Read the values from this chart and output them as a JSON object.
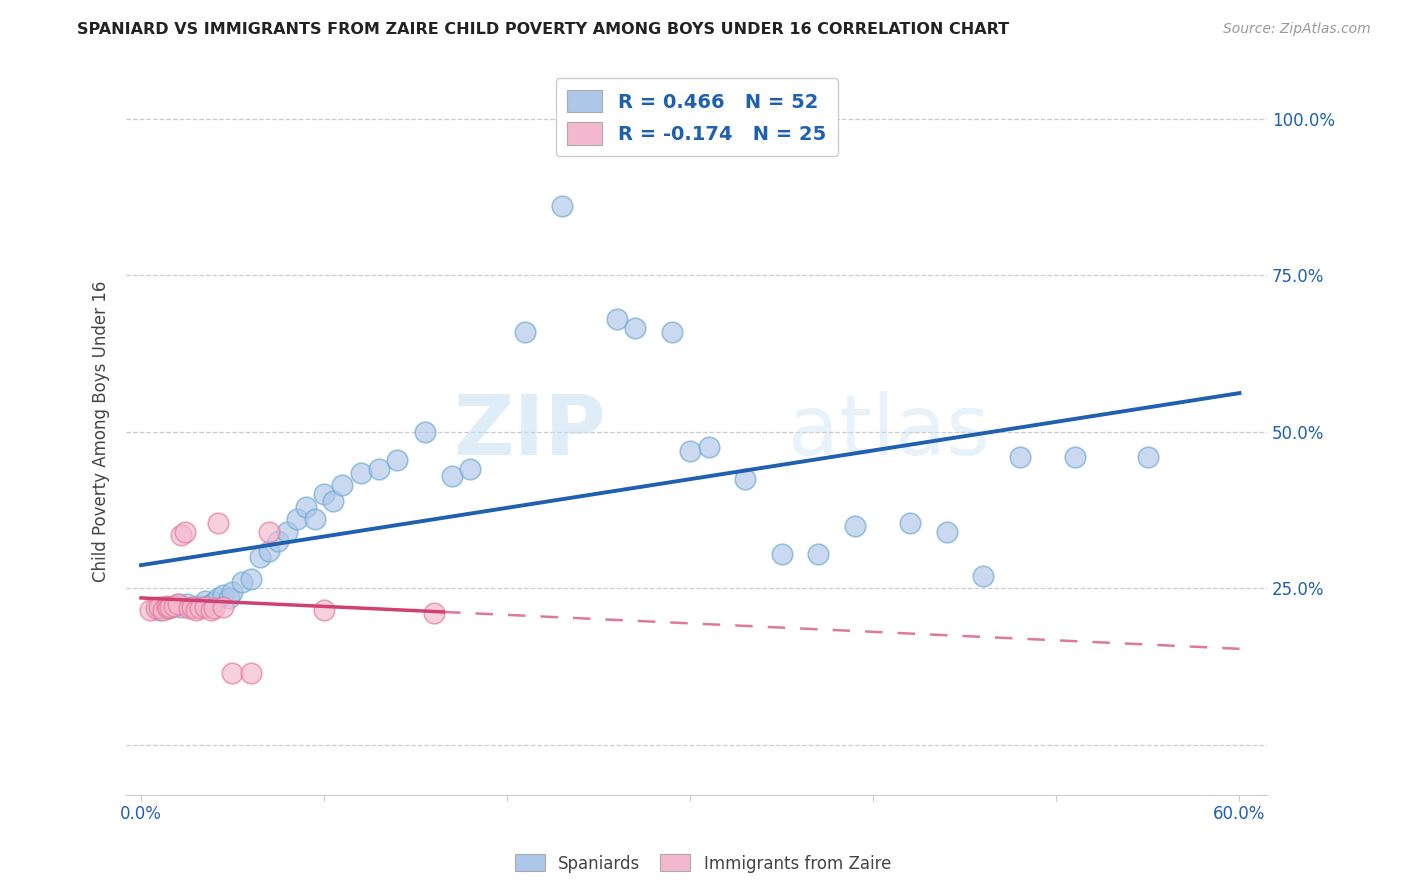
{
  "title": "SPANIARD VS IMMIGRANTS FROM ZAIRE CHILD POVERTY AMONG BOYS UNDER 16 CORRELATION CHART",
  "source": "Source: ZipAtlas.com",
  "ylabel": "Child Poverty Among Boys Under 16",
  "blue_R": 0.466,
  "blue_N": 52,
  "pink_R": -0.174,
  "pink_N": 25,
  "blue_color": "#aec6e8",
  "pink_color": "#f4b8ce",
  "blue_edge_color": "#6aaad4",
  "pink_edge_color": "#e87898",
  "blue_line_color": "#2060b0",
  "pink_line_color": "#d04070",
  "watermark_color": "#c8dff0",
  "legend_labels": [
    "Spaniards",
    "Immigrants from Zaire"
  ],
  "blue_scatter_x": [
    0.01,
    0.012,
    0.015,
    0.018,
    0.02,
    0.022,
    0.025,
    0.028,
    0.03,
    0.032,
    0.035,
    0.038,
    0.04,
    0.042,
    0.045,
    0.048,
    0.05,
    0.055,
    0.06,
    0.065,
    0.07,
    0.075,
    0.08,
    0.085,
    0.09,
    0.095,
    0.1,
    0.105,
    0.11,
    0.12,
    0.13,
    0.14,
    0.155,
    0.17,
    0.18,
    0.21,
    0.23,
    0.26,
    0.27,
    0.29,
    0.3,
    0.31,
    0.33,
    0.35,
    0.37,
    0.39,
    0.42,
    0.44,
    0.46,
    0.48,
    0.51,
    0.55
  ],
  "blue_scatter_y": [
    0.215,
    0.22,
    0.218,
    0.222,
    0.225,
    0.22,
    0.225,
    0.218,
    0.22,
    0.222,
    0.23,
    0.225,
    0.228,
    0.235,
    0.24,
    0.235,
    0.245,
    0.26,
    0.265,
    0.3,
    0.31,
    0.325,
    0.34,
    0.36,
    0.38,
    0.36,
    0.4,
    0.39,
    0.415,
    0.435,
    0.44,
    0.455,
    0.5,
    0.43,
    0.44,
    0.66,
    0.86,
    0.68,
    0.665,
    0.66,
    0.47,
    0.475,
    0.425,
    0.305,
    0.305,
    0.35,
    0.355,
    0.34,
    0.27,
    0.46,
    0.46,
    0.46
  ],
  "pink_scatter_x": [
    0.005,
    0.008,
    0.01,
    0.012,
    0.014,
    0.015,
    0.016,
    0.018,
    0.02,
    0.022,
    0.024,
    0.026,
    0.028,
    0.03,
    0.032,
    0.035,
    0.038,
    0.04,
    0.042,
    0.045,
    0.05,
    0.06,
    0.07,
    0.1,
    0.16
  ],
  "pink_scatter_y": [
    0.215,
    0.218,
    0.22,
    0.215,
    0.222,
    0.218,
    0.22,
    0.222,
    0.225,
    0.335,
    0.34,
    0.218,
    0.22,
    0.215,
    0.218,
    0.22,
    0.215,
    0.218,
    0.355,
    0.22,
    0.115,
    0.115,
    0.34,
    0.215,
    0.21
  ],
  "x_min": 0.0,
  "x_max": 0.6,
  "y_min": -0.08,
  "y_max": 1.08,
  "x_ticks": [
    0.0,
    0.1,
    0.2,
    0.3,
    0.4,
    0.5,
    0.6
  ],
  "x_tick_labels": [
    "0.0%",
    "",
    "",
    "",
    "",
    "",
    "60.0%"
  ],
  "y_ticks": [
    0.0,
    0.25,
    0.5,
    0.75,
    1.0
  ],
  "y_tick_labels_right": [
    "",
    "25.0%",
    "50.0%",
    "75.0%",
    "100.0%"
  ]
}
